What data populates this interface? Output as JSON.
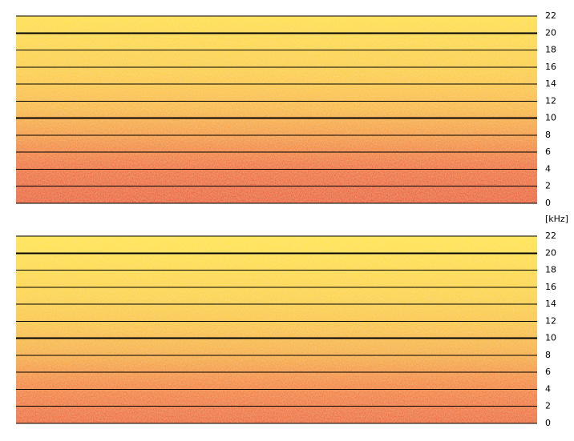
{
  "chart_data": [
    {
      "type": "spectrogram",
      "ylabel": "[kHz]",
      "ylim": [
        0,
        22
      ],
      "yticks": [
        0,
        2,
        4,
        6,
        8,
        10,
        12,
        14,
        16,
        18,
        20,
        22
      ],
      "grid": true
    },
    {
      "type": "spectrogram",
      "ylim": [
        0,
        22
      ],
      "yticks": [
        0,
        2,
        4,
        6,
        8,
        10,
        12,
        14,
        16,
        18,
        20,
        22
      ],
      "grid": true
    }
  ]
}
